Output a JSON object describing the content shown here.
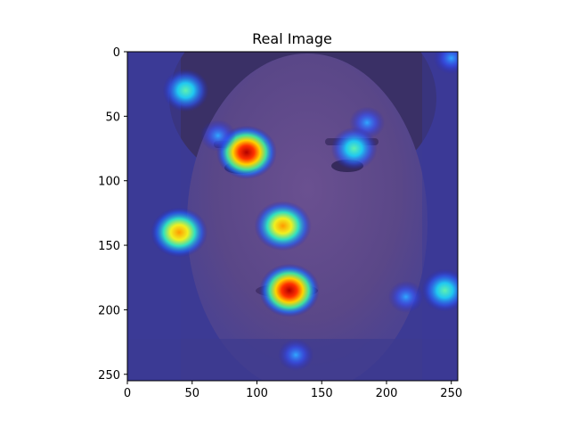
{
  "chart_data": {
    "type": "heatmap",
    "title": "Real Image",
    "xlabel": "",
    "ylabel": "",
    "xlim": [
      0,
      255
    ],
    "ylim": [
      255,
      0
    ],
    "x_ticks": [
      0,
      50,
      100,
      150,
      200,
      250
    ],
    "y_ticks": [
      0,
      50,
      100,
      150,
      200,
      250
    ],
    "grid": false,
    "colormap": "jet",
    "overlay_alpha": 0.5,
    "background_image": "grayscale face photo with a dark blue heatmap overlay",
    "hotspots": [
      {
        "x": 92,
        "y": 78,
        "intensity": 1.0
      },
      {
        "x": 125,
        "y": 185,
        "intensity": 1.0
      },
      {
        "x": 120,
        "y": 135,
        "intensity": 0.85
      },
      {
        "x": 40,
        "y": 140,
        "intensity": 0.8
      },
      {
        "x": 45,
        "y": 30,
        "intensity": 0.55
      },
      {
        "x": 185,
        "y": 55,
        "intensity": 0.45
      },
      {
        "x": 175,
        "y": 75,
        "intensity": 0.5
      },
      {
        "x": 245,
        "y": 185,
        "intensity": 0.6
      },
      {
        "x": 130,
        "y": 235,
        "intensity": 0.45
      },
      {
        "x": 70,
        "y": 65,
        "intensity": 0.4
      },
      {
        "x": 250,
        "y": 5,
        "intensity": 0.4
      },
      {
        "x": 215,
        "y": 190,
        "intensity": 0.4
      }
    ]
  }
}
